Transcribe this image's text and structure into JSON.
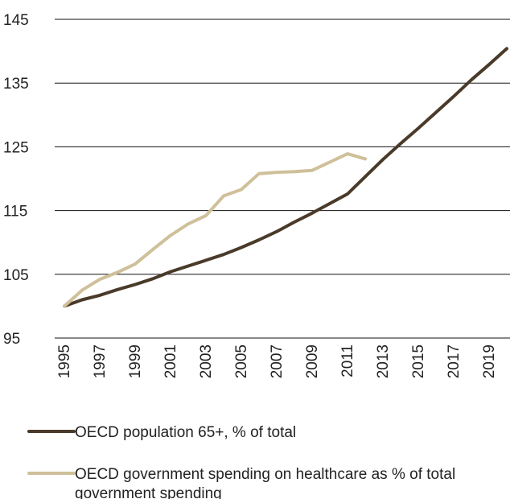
{
  "chart_data": {
    "type": "line",
    "x": [
      1995,
      1996,
      1997,
      1998,
      1999,
      2000,
      2001,
      2002,
      2003,
      2004,
      2005,
      2006,
      2007,
      2008,
      2009,
      2010,
      2011,
      2012,
      2013,
      2014,
      2015,
      2016,
      2017,
      2018,
      2019,
      2020
    ],
    "x_tick_labels": [
      "1995",
      "1997",
      "1999",
      "2001",
      "2003",
      "2005",
      "2007",
      "2009",
      "2011",
      "2013",
      "2015",
      "2017",
      "2019"
    ],
    "y_tick_labels": [
      "95",
      "105",
      "115",
      "125",
      "135",
      "145"
    ],
    "ylim": [
      95,
      145
    ],
    "xlim": [
      1995,
      2020
    ],
    "grid": "horizontal",
    "legend_position": "bottom",
    "title": "",
    "xlabel": "",
    "ylabel": "",
    "series": [
      {
        "name": "OECD population 65+, % of total",
        "color": "#4a3a2a",
        "values": [
          100.0,
          101.0,
          101.7,
          102.6,
          103.4,
          104.3,
          105.4,
          106.3,
          107.2,
          108.1,
          109.2,
          110.4,
          111.7,
          113.2,
          114.6,
          116.1,
          117.6,
          120.3,
          123.0,
          125.5,
          127.9,
          130.4,
          132.9,
          135.5,
          137.9,
          140.4
        ]
      },
      {
        "name": "OECD government spending on healthcare as % of total government spending",
        "color": "#cfc09a",
        "values": [
          100.0,
          102.5,
          104.2,
          105.3,
          106.6,
          108.9,
          111.1,
          112.9,
          114.2,
          117.3,
          118.3,
          120.8,
          121.0,
          121.1,
          121.3,
          122.6,
          123.9,
          123.1,
          null,
          null,
          null,
          null,
          null,
          null,
          null,
          null
        ]
      }
    ]
  }
}
